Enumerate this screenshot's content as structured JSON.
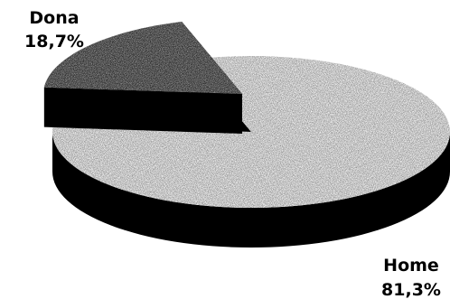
{
  "chart_data": {
    "type": "pie",
    "style": "3d-exploded",
    "title": "",
    "slices": [
      {
        "label": "Dona",
        "value": 18.7,
        "value_text": "18,7%",
        "pattern": "dark-stipple"
      },
      {
        "label": "Home",
        "value": 81.3,
        "value_text": "81,3%",
        "pattern": "light-stipple"
      }
    ],
    "colors": {
      "dona_top": "#565656",
      "home_top": "#e9e9e9",
      "side": "#000000"
    }
  }
}
